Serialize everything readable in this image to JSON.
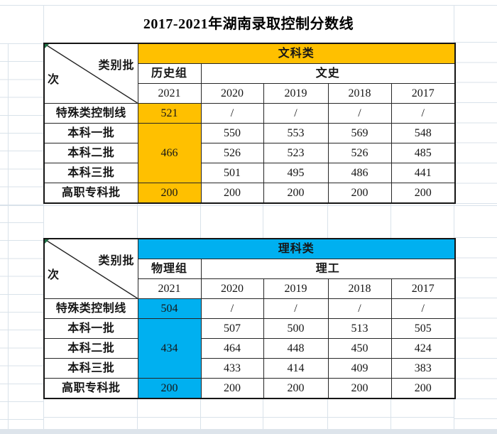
{
  "title": "2017-2021年湖南录取控制分数线",
  "corner_label_top": "类别批",
  "corner_label_bottom": "次",
  "tables": [
    {
      "category": "文科类",
      "accent_color": "#FFC000",
      "group_2021": "历史组",
      "group_past": "文史",
      "years": [
        "2021",
        "2020",
        "2019",
        "2018",
        "2017"
      ],
      "rows": [
        {
          "label": "特殊类控制线",
          "score_2021": "521",
          "span": 1,
          "values": [
            "/",
            "/",
            "/",
            "/"
          ]
        },
        {
          "label": "本科一批",
          "score_2021": "466",
          "span": 3,
          "values": [
            "550",
            "553",
            "569",
            "548"
          ]
        },
        {
          "label": "本科二批",
          "values": [
            "526",
            "523",
            "526",
            "485"
          ]
        },
        {
          "label": "本科三批",
          "values": [
            "501",
            "495",
            "486",
            "441"
          ]
        },
        {
          "label": "高职专科批",
          "score_2021": "200",
          "span": 1,
          "values": [
            "200",
            "200",
            "200",
            "200"
          ]
        }
      ]
    },
    {
      "category": "理科类",
      "accent_color": "#00B0F0",
      "group_2021": "物理组",
      "group_past": "理工",
      "years": [
        "2021",
        "2020",
        "2019",
        "2018",
        "2017"
      ],
      "rows": [
        {
          "label": "特殊类控制线",
          "score_2021": "504",
          "span": 1,
          "values": [
            "/",
            "/",
            "/",
            "/"
          ]
        },
        {
          "label": "本科一批",
          "score_2021": "434",
          "span": 3,
          "values": [
            "507",
            "500",
            "513",
            "505"
          ]
        },
        {
          "label": "本科二批",
          "values": [
            "464",
            "448",
            "450",
            "424"
          ]
        },
        {
          "label": "本科三批",
          "values": [
            "433",
            "414",
            "409",
            "383"
          ]
        },
        {
          "label": "高职专科批",
          "score_2021": "200",
          "span": 1,
          "values": [
            "200",
            "200",
            "200",
            "200"
          ]
        }
      ]
    }
  ]
}
